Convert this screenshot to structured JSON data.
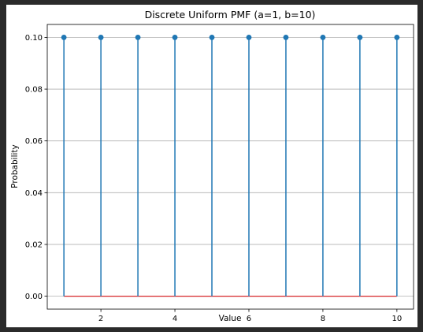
{
  "chart_data": {
    "type": "stem",
    "title": "Discrete Uniform PMF (a=1, b=10)",
    "xlabel": "Value",
    "ylabel": "Probability",
    "x": [
      1,
      2,
      3,
      4,
      5,
      6,
      7,
      8,
      9,
      10
    ],
    "y": [
      0.1,
      0.1,
      0.1,
      0.1,
      0.1,
      0.1,
      0.1,
      0.1,
      0.1,
      0.1
    ],
    "xlim": [
      0.55,
      10.45
    ],
    "ylim": [
      -0.005,
      0.105
    ],
    "xticks": [
      2,
      4,
      6,
      8,
      10
    ],
    "xtick_labels": [
      "2",
      "4",
      "6",
      "8",
      "10"
    ],
    "yticks": [
      0.0,
      0.02,
      0.04,
      0.06,
      0.08,
      0.1
    ],
    "ytick_labels": [
      "0.00",
      "0.02",
      "0.04",
      "0.06",
      "0.08",
      "0.10"
    ],
    "grid": "horizontal",
    "colors": {
      "stem": "#1f77b4",
      "marker": "#1f77b4",
      "baseline": "#d62728",
      "grid": "#b0b0b0"
    }
  }
}
